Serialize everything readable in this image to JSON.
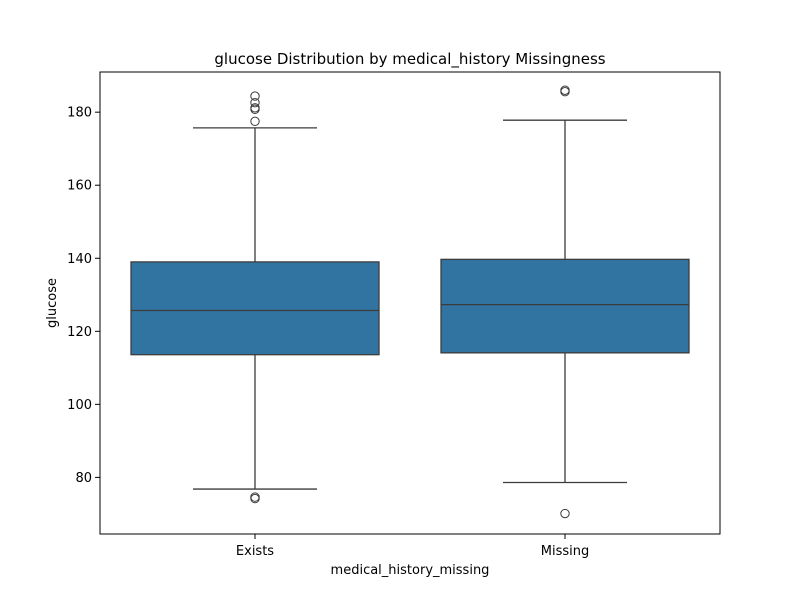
{
  "chart_data": {
    "type": "box",
    "title": "glucose Distribution by medical_history Missingness",
    "xlabel": "medical_history_missing",
    "ylabel": "glucose",
    "ylim": [
      64.5,
      191
    ],
    "yticks": [
      80,
      100,
      120,
      140,
      160,
      180
    ],
    "grid": false,
    "categories": [
      "Exists",
      "Missing"
    ],
    "box_color": "#3274a1",
    "line_color": "#3c3c3c",
    "boxes": [
      {
        "category": "Exists",
        "whisker_low": 76.8,
        "q1": 113.6,
        "median": 125.7,
        "q3": 139.0,
        "whisker_high": 175.7,
        "outliers": [
          184.4,
          182.6,
          181.2,
          180.8,
          177.5,
          74.6,
          74.2
        ]
      },
      {
        "category": "Missing",
        "whisker_low": 78.6,
        "q1": 114.1,
        "median": 127.3,
        "q3": 139.7,
        "whisker_high": 177.8,
        "outliers": [
          186.0,
          185.6,
          70.1
        ]
      }
    ]
  }
}
